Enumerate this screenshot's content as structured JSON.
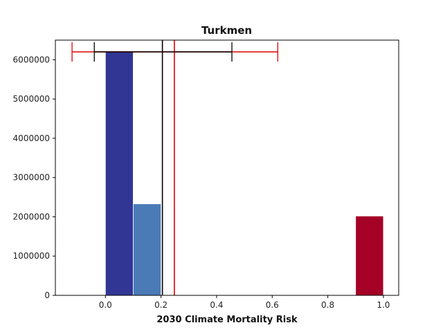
{
  "chart_data": {
    "type": "bar",
    "title": "Turkmen",
    "xlabel": "2030 Climate Mortality Risk",
    "ylabel": "",
    "xlim": [
      -0.18,
      1.055
    ],
    "ylim": [
      0,
      6500000
    ],
    "xticks": [
      0.0,
      0.2,
      0.4,
      0.6,
      0.8,
      1.0
    ],
    "xtick_labels": [
      "0.0",
      "0.2",
      "0.4",
      "0.6",
      "0.8",
      "1.0"
    ],
    "yticks": [
      0,
      1000000,
      2000000,
      3000000,
      4000000,
      5000000,
      6000000
    ],
    "ytick_labels": [
      "0",
      "1000000",
      "2000000",
      "3000000",
      "4000000",
      "5000000",
      "6000000"
    ],
    "bars": [
      {
        "x0": 0.0,
        "x1": 0.1,
        "value": 6200000,
        "color": "#313695"
      },
      {
        "x0": 0.1,
        "x1": 0.2,
        "value": 2330000,
        "color": "#4a7bb7"
      },
      {
        "x0": 0.9,
        "x1": 1.0,
        "value": 2020000,
        "color": "#a50026"
      }
    ],
    "reference_lines": [
      {
        "x": 0.205,
        "color": "#000000"
      },
      {
        "x": 0.248,
        "color": "#e00000"
      }
    ],
    "error_bars": [
      {
        "center": 0.248,
        "low": -0.12,
        "high": 0.62,
        "y": 6200000,
        "color": "#e00000"
      },
      {
        "center": 0.205,
        "low": -0.04,
        "high": 0.455,
        "y": 6200000,
        "color": "#000000"
      }
    ],
    "grid": false,
    "legend": "none"
  }
}
